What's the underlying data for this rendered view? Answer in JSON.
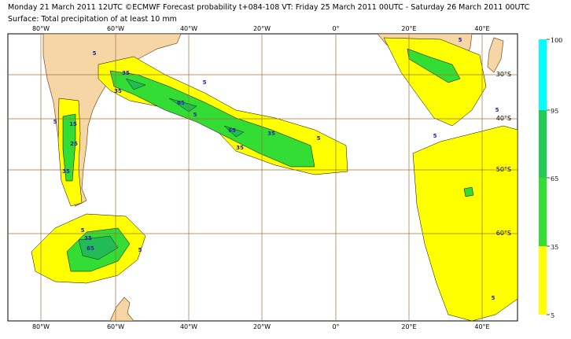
{
  "header": {
    "line1": "Monday 21 March 2011 12UTC ©ECMWF Forecast probability t+084-108 VT: Friday 25 March 2011 00UTC - Saturday 26 March 2011 00UTC",
    "line2": "Surface: Total precipitation of at least 10 mm"
  },
  "map": {
    "lon_labels": [
      "80°W",
      "60°W",
      "40°W",
      "20°W",
      "0°",
      "20°E",
      "40°E"
    ],
    "lat_labels": [
      "30°S",
      "40°S",
      "50°S",
      "60°S"
    ],
    "contour_labels": [
      "5",
      "35",
      "35",
      "5",
      "65",
      "5",
      "35",
      "65",
      "35",
      "5",
      "5",
      "15",
      "25",
      "35",
      "5",
      "35",
      "65",
      "5",
      "5",
      "5",
      "5",
      "5"
    ]
  },
  "legend": {
    "levels": [
      5,
      35,
      65,
      95,
      100
    ],
    "colors": [
      "#ffff00",
      "#33dd33",
      "#22cc55",
      "#00ffff"
    ]
  }
}
